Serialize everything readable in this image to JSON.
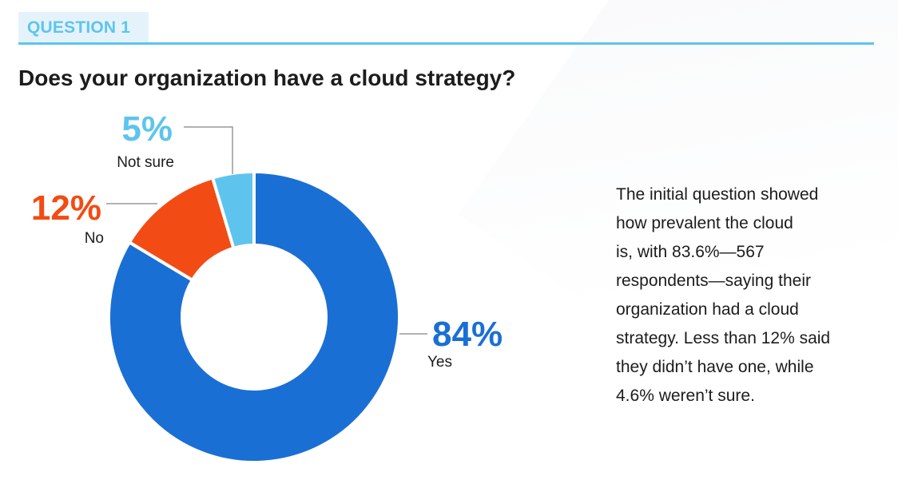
{
  "header": {
    "tag": "QUESTION 1",
    "question": "Does your organization have a cloud strategy?"
  },
  "colors": {
    "accent": "#5ec4ee",
    "yes": "#1a6fd4",
    "no": "#f24c14",
    "not_sure": "#5ec4ee",
    "leader": "#999999"
  },
  "chart_data": {
    "type": "pie",
    "style": "donut",
    "categories": [
      "Yes",
      "No",
      "Not sure"
    ],
    "values": [
      83.6,
      11.8,
      4.6
    ],
    "labels": [
      "84%",
      "12%",
      "5%"
    ],
    "title": "",
    "legend": "none"
  },
  "summary": {
    "lines": [
      "The initial question showed",
      "how prevalent the cloud",
      "is, with 83.6%—567",
      "respondents—saying their",
      "organization had a cloud",
      "strategy. Less than 12% said",
      "they didn’t have one, while",
      "4.6% weren’t sure."
    ]
  }
}
